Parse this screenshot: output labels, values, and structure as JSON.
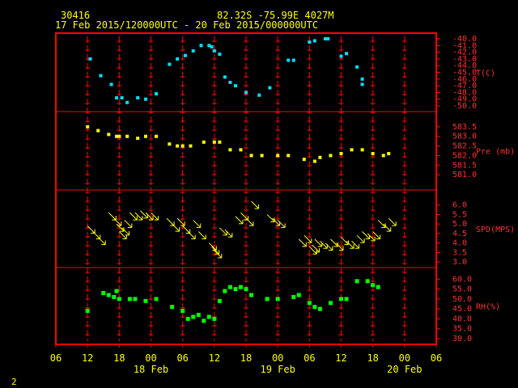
{
  "header": {
    "station": "30416",
    "coords": "82.32S   -75.99E   4027M",
    "period": "17 Feb 2015/120000UTC - 20 Feb 2015/000000UTC"
  },
  "page_number": "2",
  "colors": {
    "frame": "#ff0000",
    "text": "#ffff00",
    "temp": "#00e0ff",
    "pressure": "#ffff00",
    "wind": "#ffff00",
    "rh": "#00ff00"
  },
  "chart_data": {
    "type": "scatter",
    "x_unit": "hours since 17 Feb 2015 06 UTC",
    "x_ticks": [
      "06",
      "12",
      "18",
      "00",
      "06",
      "12",
      "18",
      "00",
      "06",
      "12",
      "18",
      "00",
      "06"
    ],
    "date_labels": [
      {
        "hour": 18,
        "label": "18 Feb"
      },
      {
        "hour": 42,
        "label": "19 Feb"
      },
      {
        "hour": 66,
        "label": "20 Feb"
      }
    ],
    "panels": [
      {
        "name": "temp",
        "ylabel": "T(C)",
        "ylim": [
          -50,
          -40
        ],
        "y_ticks": [
          "-40.0",
          "-41.0",
          "-42.0",
          "-43.0",
          "-44.0",
          "-45.0",
          "-46.0",
          "-47.0",
          "-48.0",
          "-49.0",
          "-50.0"
        ],
        "points": [
          [
            6.5,
            -43.0
          ],
          [
            8.5,
            -45.5
          ],
          [
            10.5,
            -46.8
          ],
          [
            11.5,
            -48.8
          ],
          [
            12.5,
            -48.8
          ],
          [
            13.5,
            -49.5
          ],
          [
            15.5,
            -48.8
          ],
          [
            17,
            -49
          ],
          [
            19,
            -48.2
          ],
          [
            21.5,
            -43.8
          ],
          [
            23,
            -43.0
          ],
          [
            24.5,
            -42.5
          ],
          [
            26,
            -41.8
          ],
          [
            27.5,
            -41
          ],
          [
            29,
            -41
          ],
          [
            29.5,
            -41.2
          ],
          [
            30,
            -41.8
          ],
          [
            31,
            -42.3
          ],
          [
            32,
            -45.7
          ],
          [
            33,
            -46.5
          ],
          [
            34,
            -47.0
          ],
          [
            36,
            -48
          ],
          [
            38.5,
            -48.4
          ],
          [
            40.5,
            -47.3
          ],
          [
            44,
            -43.2
          ],
          [
            45,
            -43.2
          ],
          [
            48,
            -40.5
          ],
          [
            49,
            -40.3
          ],
          [
            51,
            -40.0
          ],
          [
            51.5,
            -40.0
          ],
          [
            54,
            -42.6
          ],
          [
            55,
            -42.2
          ],
          [
            57,
            -44.2
          ],
          [
            58,
            -46.0
          ],
          [
            58,
            -46.8
          ]
        ]
      },
      {
        "name": "pressure",
        "ylabel": "Pre (mb)",
        "ylim": [
          580.5,
          584
        ],
        "y_ticks": [
          "583.5",
          "583.0",
          "582.5",
          "582.0",
          "581.5",
          "581.0"
        ],
        "points": [
          [
            6,
            583.5
          ],
          [
            8,
            583.3
          ],
          [
            10,
            583.1
          ],
          [
            11.5,
            583.0
          ],
          [
            12,
            583.0
          ],
          [
            13.5,
            583.0
          ],
          [
            15.5,
            582.9
          ],
          [
            17,
            583.0
          ],
          [
            19,
            583.0
          ],
          [
            21.5,
            582.6
          ],
          [
            23,
            582.5
          ],
          [
            24,
            582.5
          ],
          [
            25.5,
            582.5
          ],
          [
            28,
            582.7
          ],
          [
            30,
            582.7
          ],
          [
            31,
            582.7
          ],
          [
            33,
            582.3
          ],
          [
            35,
            582.3
          ],
          [
            37,
            582.0
          ],
          [
            39,
            582.0
          ],
          [
            42,
            582.0
          ],
          [
            44,
            582.0
          ],
          [
            47,
            581.8
          ],
          [
            49,
            581.7
          ],
          [
            50,
            581.9
          ],
          [
            52,
            582.0
          ],
          [
            54,
            582.1
          ],
          [
            56,
            582.3
          ],
          [
            58,
            582.3
          ],
          [
            60,
            582.1
          ],
          [
            62,
            582.0
          ],
          [
            63,
            582.1
          ]
        ]
      },
      {
        "name": "wind",
        "ylabel": "SPD(MPS)",
        "ylim": [
          3,
          6.5
        ],
        "y_ticks": [
          "6.0",
          "5.5",
          "5.0",
          "4.5",
          "4.0",
          "3.5",
          "3.0"
        ],
        "points": [
          [
            6,
            4.9
          ],
          [
            7,
            4.6
          ],
          [
            8,
            4.3
          ],
          [
            10,
            5.6
          ],
          [
            11,
            5.3
          ],
          [
            11.5,
            5.0
          ],
          [
            12,
            4.6
          ],
          [
            12.5,
            4.8
          ],
          [
            13,
            5.2
          ],
          [
            14,
            5.6
          ],
          [
            15,
            5.6
          ],
          [
            16,
            5.7
          ],
          [
            17,
            5.6
          ],
          [
            18,
            5.6
          ],
          [
            21,
            5.3
          ],
          [
            22,
            5.0
          ],
          [
            23,
            5.3
          ],
          [
            24,
            4.9
          ],
          [
            25,
            4.6
          ],
          [
            26,
            5.2
          ],
          [
            27,
            4.6
          ],
          [
            29,
            4.0
          ],
          [
            29.5,
            3.8
          ],
          [
            30,
            3.6
          ],
          [
            31,
            4.8
          ],
          [
            32,
            4.7
          ],
          [
            34,
            5.4
          ],
          [
            35,
            5.6
          ],
          [
            36,
            5.3
          ],
          [
            37,
            6.2
          ],
          [
            40,
            5.5
          ],
          [
            41,
            5.3
          ],
          [
            42,
            5.2
          ],
          [
            46,
            4.2
          ],
          [
            47,
            4.4
          ],
          [
            48,
            3.8
          ],
          [
            48.5,
            3.9
          ],
          [
            49,
            4.2
          ],
          [
            50,
            4.1
          ],
          [
            51,
            4.0
          ],
          [
            52,
            4.2
          ],
          [
            53,
            4.0
          ],
          [
            54,
            4.3
          ],
          [
            55,
            4.1
          ],
          [
            56,
            4.1
          ],
          [
            57,
            4.4
          ],
          [
            58,
            4.6
          ],
          [
            59,
            4.5
          ],
          [
            60,
            4.6
          ],
          [
            61,
            5.2
          ],
          [
            62,
            5.0
          ],
          [
            63,
            5.3
          ]
        ]
      },
      {
        "name": "rh",
        "ylabel": "RH(%)",
        "ylim": [
          30,
          63
        ],
        "y_ticks": [
          "60.0",
          "55.0",
          "50.0",
          "45.0",
          "40.0",
          "35.0",
          "30.0"
        ],
        "points": [
          [
            6,
            44
          ],
          [
            9,
            53
          ],
          [
            10,
            52
          ],
          [
            11,
            51
          ],
          [
            11.5,
            54
          ],
          [
            12,
            50
          ],
          [
            14,
            50
          ],
          [
            15,
            50
          ],
          [
            17,
            49
          ],
          [
            19,
            50
          ],
          [
            22,
            46
          ],
          [
            24,
            44
          ],
          [
            25,
            40
          ],
          [
            26,
            41
          ],
          [
            27,
            42
          ],
          [
            28,
            39
          ],
          [
            29,
            41
          ],
          [
            30,
            40
          ],
          [
            31,
            49
          ],
          [
            32,
            54
          ],
          [
            33,
            56
          ],
          [
            34,
            55
          ],
          [
            35,
            56
          ],
          [
            36,
            55
          ],
          [
            37,
            52
          ],
          [
            40,
            50
          ],
          [
            42,
            50
          ],
          [
            45,
            51
          ],
          [
            46,
            52
          ],
          [
            48,
            48
          ],
          [
            49,
            46
          ],
          [
            50,
            45
          ],
          [
            52,
            48
          ],
          [
            54,
            50
          ],
          [
            55,
            50
          ],
          [
            57,
            59
          ],
          [
            59,
            59
          ],
          [
            60,
            57
          ],
          [
            61,
            56
          ]
        ]
      }
    ]
  }
}
